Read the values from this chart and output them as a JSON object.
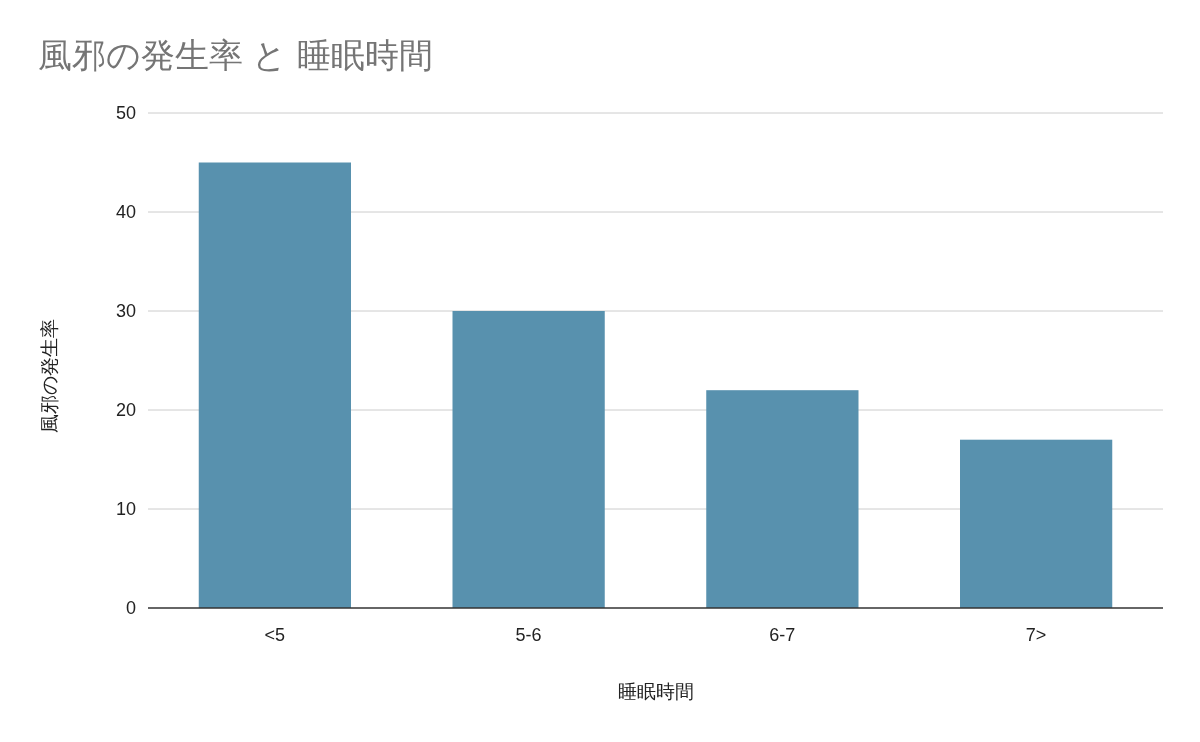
{
  "chart_data": {
    "type": "bar",
    "title": "風邪の発生率 と 睡眠時間",
    "xlabel": "睡眠時間",
    "ylabel": "風邪の発生率",
    "categories": [
      "<5",
      "5-6",
      "6-7",
      "7>"
    ],
    "values": [
      45,
      30,
      22,
      17
    ],
    "color": "#5891ae",
    "ylim": [
      0,
      50
    ],
    "yticks": [
      0,
      10,
      20,
      30,
      40,
      50
    ],
    "grid": "y"
  }
}
